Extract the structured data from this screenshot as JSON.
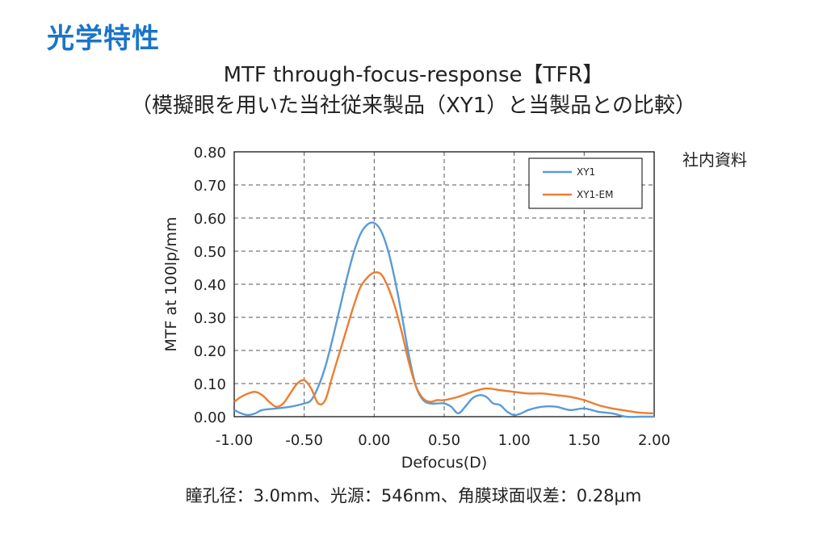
{
  "section_title": "光学特性",
  "note": "社内資料",
  "footer": "瞳孔径：3.0mm、光源：546nm、角膜球面収差：0.28μm",
  "chart_data": {
    "type": "line",
    "title": "MTF through-focus-response【TFR】",
    "subtitle": "（模擬眼を用いた当社従来製品（XY1）と当製品との比較）",
    "xlabel": "Defocus(D)",
    "ylabel": "MTF at 100lp/mm",
    "xlim": [
      -1.0,
      2.0
    ],
    "ylim": [
      0.0,
      0.8
    ],
    "xticks": [
      "-1.00",
      "-0.50",
      "0.00",
      "0.50",
      "1.00",
      "1.50",
      "2.00"
    ],
    "yticks": [
      "0.00",
      "0.10",
      "0.20",
      "0.30",
      "0.40",
      "0.50",
      "0.60",
      "0.70",
      "0.80"
    ],
    "grid": true,
    "legend_position": "top-right",
    "series": [
      {
        "name": "XY1",
        "color": "#5b9bd5",
        "x": [
          -1.0,
          -0.95,
          -0.9,
          -0.85,
          -0.8,
          -0.7,
          -0.6,
          -0.5,
          -0.45,
          -0.4,
          -0.35,
          -0.3,
          -0.25,
          -0.2,
          -0.15,
          -0.1,
          -0.05,
          0.0,
          0.05,
          0.1,
          0.15,
          0.2,
          0.25,
          0.3,
          0.35,
          0.4,
          0.45,
          0.5,
          0.55,
          0.6,
          0.65,
          0.7,
          0.75,
          0.8,
          0.85,
          0.9,
          0.95,
          1.0,
          1.05,
          1.1,
          1.2,
          1.3,
          1.4,
          1.5,
          1.6,
          1.7,
          1.8,
          1.9,
          2.0
        ],
        "y": [
          0.02,
          0.01,
          0.005,
          0.01,
          0.02,
          0.025,
          0.03,
          0.04,
          0.05,
          0.09,
          0.15,
          0.23,
          0.32,
          0.41,
          0.49,
          0.55,
          0.58,
          0.585,
          0.56,
          0.5,
          0.41,
          0.3,
          0.18,
          0.09,
          0.05,
          0.04,
          0.04,
          0.04,
          0.03,
          0.01,
          0.03,
          0.055,
          0.065,
          0.06,
          0.04,
          0.035,
          0.015,
          0.005,
          0.01,
          0.02,
          0.03,
          0.03,
          0.02,
          0.025,
          0.015,
          0.01,
          0.0,
          0.0,
          0.0
        ]
      },
      {
        "name": "XY1-EM",
        "color": "#ed7d31",
        "x": [
          -1.0,
          -0.95,
          -0.9,
          -0.85,
          -0.8,
          -0.75,
          -0.7,
          -0.65,
          -0.6,
          -0.55,
          -0.5,
          -0.45,
          -0.4,
          -0.35,
          -0.3,
          -0.25,
          -0.2,
          -0.15,
          -0.1,
          -0.05,
          0.0,
          0.05,
          0.1,
          0.15,
          0.2,
          0.25,
          0.3,
          0.35,
          0.4,
          0.45,
          0.5,
          0.6,
          0.7,
          0.8,
          0.9,
          1.0,
          1.1,
          1.2,
          1.3,
          1.4,
          1.5,
          1.6,
          1.7,
          1.8,
          1.9,
          2.0
        ],
        "y": [
          0.045,
          0.06,
          0.07,
          0.075,
          0.065,
          0.045,
          0.03,
          0.04,
          0.07,
          0.1,
          0.11,
          0.085,
          0.04,
          0.05,
          0.12,
          0.19,
          0.26,
          0.33,
          0.39,
          0.42,
          0.435,
          0.43,
          0.39,
          0.33,
          0.25,
          0.16,
          0.09,
          0.055,
          0.045,
          0.05,
          0.05,
          0.06,
          0.075,
          0.085,
          0.08,
          0.075,
          0.07,
          0.07,
          0.065,
          0.06,
          0.05,
          0.035,
          0.025,
          0.018,
          0.012,
          0.01
        ]
      }
    ]
  }
}
